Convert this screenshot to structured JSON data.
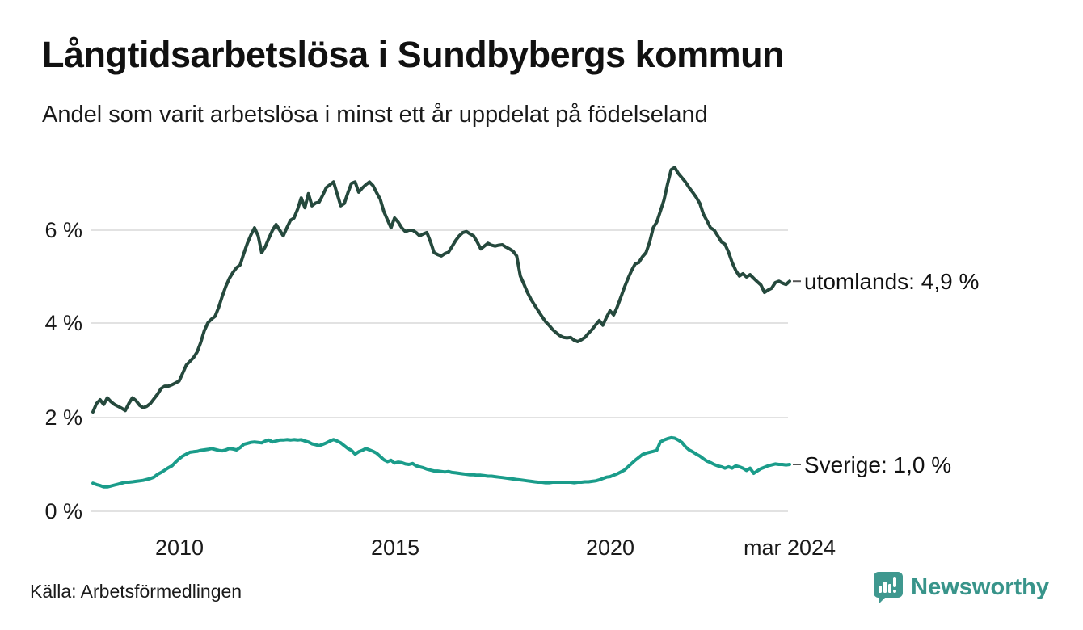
{
  "header": {
    "title": "Långtidsarbetslösa i Sundbybergs kommun",
    "subtitle": "Andel som varit arbetslösa i minst ett år uppdelat på födelseland"
  },
  "footer": {
    "source": "Källa: Arbetsförmedlingen",
    "brand_name": "Newsworthy"
  },
  "colors": {
    "utomlands_line": "#25493d",
    "sverige_line": "#1a9c8a",
    "gridline": "#e2e2e2",
    "brand_teal": "#3f988f",
    "brand_text": "#38948a",
    "connector": "#555555"
  },
  "icons": {
    "brand_logo": "speech-bubble-bar-chart-icon"
  },
  "chart_data": {
    "type": "line",
    "title": "Långtidsarbetslösa i Sundbybergs kommun",
    "subtitle": "Andel som varit arbetslösa i minst ett år uppdelat på födelseland",
    "x_unit": "month",
    "x_start": "2008-01",
    "x_end": "2024-03",
    "x_tick_labels": [
      "2010",
      "2015",
      "2020",
      "mar 2024"
    ],
    "y_tick_labels": [
      "0 %",
      "2 %",
      "4 %",
      "6 %"
    ],
    "ylim": [
      0,
      7.8
    ],
    "grid": "horizontal",
    "legend_position": "end-of-line-labels",
    "series": [
      {
        "name": "utomlands",
        "end_label": "utomlands: 4,9 %",
        "last_value": 4.9,
        "color": "#25493d",
        "values": [
          2.12,
          2.3,
          2.38,
          2.28,
          2.42,
          2.34,
          2.28,
          2.24,
          2.2,
          2.15,
          2.3,
          2.42,
          2.36,
          2.26,
          2.21,
          2.24,
          2.3,
          2.4,
          2.5,
          2.62,
          2.67,
          2.67,
          2.7,
          2.74,
          2.78,
          2.95,
          3.12,
          3.2,
          3.28,
          3.4,
          3.6,
          3.85,
          4.02,
          4.1,
          4.16,
          4.35,
          4.59,
          4.8,
          4.97,
          5.1,
          5.2,
          5.26,
          5.5,
          5.72,
          5.9,
          6.05,
          5.88,
          5.52,
          5.65,
          5.83,
          6.0,
          6.12,
          6.0,
          5.88,
          6.05,
          6.21,
          6.26,
          6.45,
          6.69,
          6.48,
          6.78,
          6.52,
          6.58,
          6.6,
          6.75,
          6.91,
          6.97,
          7.03,
          6.78,
          6.52,
          6.57,
          6.8,
          7.0,
          7.03,
          6.81,
          6.9,
          6.97,
          7.03,
          6.95,
          6.8,
          6.66,
          6.4,
          6.22,
          6.05,
          6.26,
          6.17,
          6.05,
          5.97,
          6.0,
          6.0,
          5.95,
          5.88,
          5.92,
          5.95,
          5.75,
          5.52,
          5.48,
          5.45,
          5.5,
          5.53,
          5.65,
          5.78,
          5.88,
          5.95,
          5.97,
          5.92,
          5.88,
          5.75,
          5.6,
          5.66,
          5.72,
          5.68,
          5.66,
          5.68,
          5.69,
          5.64,
          5.6,
          5.55,
          5.45,
          5.02,
          4.85,
          4.67,
          4.52,
          4.4,
          4.28,
          4.16,
          4.05,
          3.97,
          3.88,
          3.81,
          3.75,
          3.71,
          3.7,
          3.71,
          3.65,
          3.62,
          3.66,
          3.71,
          3.8,
          3.88,
          3.98,
          4.07,
          3.97,
          4.14,
          4.28,
          4.19,
          4.36,
          4.57,
          4.78,
          4.97,
          5.14,
          5.28,
          5.31,
          5.43,
          5.52,
          5.74,
          6.05,
          6.17,
          6.4,
          6.64,
          6.98,
          7.29,
          7.34,
          7.21,
          7.12,
          7.03,
          6.91,
          6.81,
          6.7,
          6.57,
          6.34,
          6.2,
          6.05,
          6.0,
          5.88,
          5.75,
          5.7,
          5.53,
          5.31,
          5.14,
          5.02,
          5.07,
          5.0,
          5.05,
          4.97,
          4.9,
          4.83,
          4.67,
          4.72,
          4.76,
          4.88,
          4.91,
          4.87,
          4.84,
          4.91
        ]
      },
      {
        "name": "Sverige",
        "end_label": "Sverige: 1,0 %",
        "last_value": 1.0,
        "color": "#1a9c8a",
        "values": [
          0.6,
          0.57,
          0.55,
          0.52,
          0.52,
          0.54,
          0.56,
          0.58,
          0.6,
          0.62,
          0.62,
          0.63,
          0.64,
          0.65,
          0.66,
          0.68,
          0.7,
          0.73,
          0.79,
          0.83,
          0.88,
          0.93,
          0.97,
          1.05,
          1.12,
          1.18,
          1.22,
          1.26,
          1.27,
          1.28,
          1.3,
          1.31,
          1.32,
          1.34,
          1.32,
          1.3,
          1.29,
          1.31,
          1.34,
          1.33,
          1.31,
          1.36,
          1.43,
          1.45,
          1.47,
          1.48,
          1.47,
          1.46,
          1.5,
          1.52,
          1.48,
          1.5,
          1.52,
          1.52,
          1.53,
          1.52,
          1.53,
          1.52,
          1.53,
          1.5,
          1.48,
          1.44,
          1.42,
          1.4,
          1.43,
          1.46,
          1.5,
          1.53,
          1.5,
          1.46,
          1.4,
          1.34,
          1.3,
          1.22,
          1.27,
          1.3,
          1.34,
          1.31,
          1.28,
          1.24,
          1.17,
          1.1,
          1.06,
          1.09,
          1.03,
          1.05,
          1.04,
          1.01,
          1.0,
          1.02,
          0.97,
          0.95,
          0.93,
          0.9,
          0.88,
          0.86,
          0.86,
          0.85,
          0.84,
          0.85,
          0.83,
          0.82,
          0.81,
          0.8,
          0.79,
          0.78,
          0.78,
          0.77,
          0.77,
          0.76,
          0.75,
          0.75,
          0.74,
          0.73,
          0.72,
          0.71,
          0.7,
          0.69,
          0.68,
          0.67,
          0.66,
          0.65,
          0.64,
          0.63,
          0.62,
          0.62,
          0.61,
          0.61,
          0.62,
          0.62,
          0.62,
          0.62,
          0.62,
          0.62,
          0.61,
          0.62,
          0.62,
          0.63,
          0.63,
          0.64,
          0.65,
          0.67,
          0.7,
          0.73,
          0.74,
          0.77,
          0.8,
          0.84,
          0.88,
          0.95,
          1.02,
          1.09,
          1.15,
          1.21,
          1.24,
          1.26,
          1.28,
          1.3,
          1.48,
          1.52,
          1.55,
          1.57,
          1.56,
          1.52,
          1.47,
          1.38,
          1.31,
          1.27,
          1.22,
          1.18,
          1.12,
          1.07,
          1.04,
          1.0,
          0.97,
          0.95,
          0.92,
          0.95,
          0.92,
          0.97,
          0.95,
          0.92,
          0.87,
          0.92,
          0.81,
          0.86,
          0.91,
          0.94,
          0.97,
          0.99,
          1.01,
          1.0,
          1.0,
          0.99,
          1.0
        ]
      }
    ]
  }
}
